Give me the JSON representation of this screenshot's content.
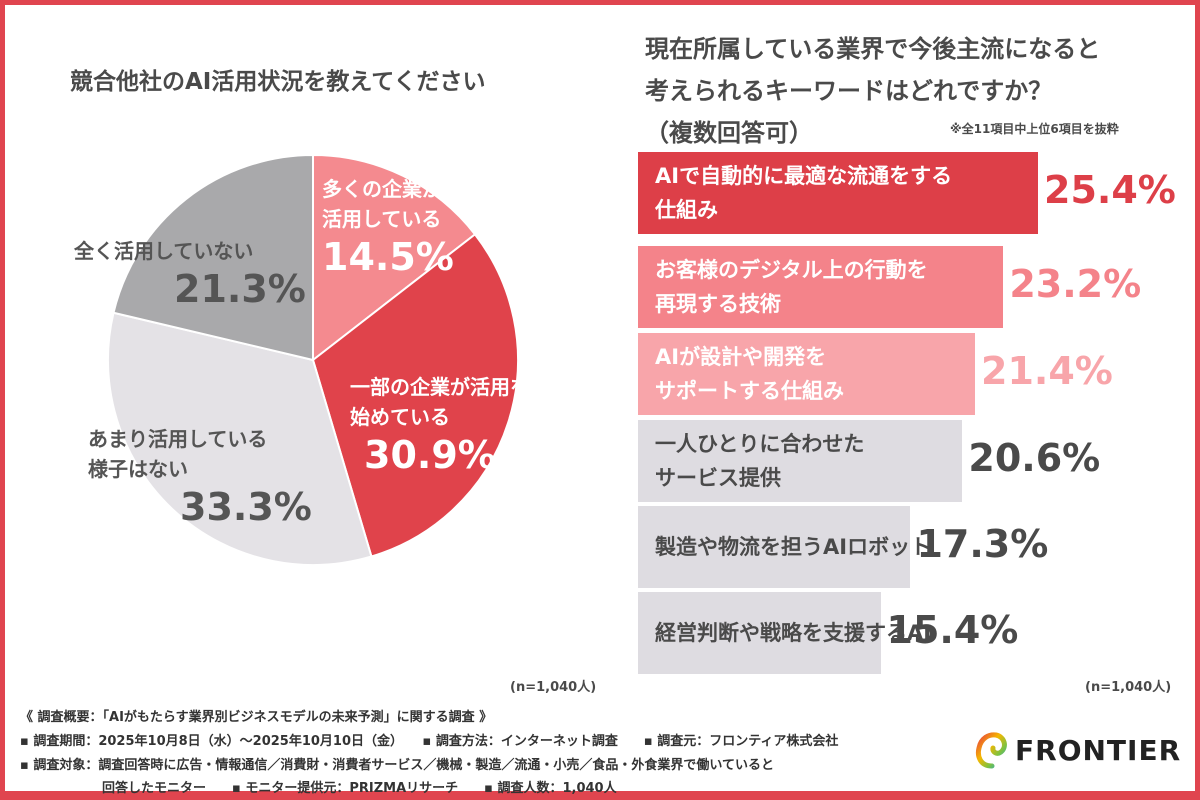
{
  "chart_data": [
    {
      "type": "pie",
      "title": "競合他社のAI活用状況を教えてください",
      "sample": "(n=1,040人)",
      "slices": [
        {
          "label": "多くの企業が積極的に活用している",
          "value": 14.5,
          "display": "14.5%",
          "color": "#f48a8f",
          "text_color": "#ffffff"
        },
        {
          "label": "一部の企業が活用を始めている",
          "value": 30.9,
          "display": "30.9%",
          "color": "#e0434b",
          "text_color": "#ffffff"
        },
        {
          "label": "あまり活用している様子はない",
          "value": 33.3,
          "display": "33.3%",
          "color": "#e4e2e6",
          "text_color": "#555555"
        },
        {
          "label": "全く活用していない",
          "value": 21.3,
          "display": "21.3%",
          "color": "#a9a9ab",
          "text_color": "#555555"
        }
      ]
    },
    {
      "type": "bar",
      "orientation": "horizontal",
      "title": "現在所属している業界で今後主流になると考えられるキーワードはどれですか？（複数回答可）",
      "note": "※全11項目中上位6項目を抜粋",
      "sample": "(n=1,040人)",
      "categories": [
        "AIで自動的に最適な流通をする仕組み",
        "お客様のデジタル上の行動を再現する技術",
        "AIが設計や開発をサポートする仕組み",
        "一人ひとりに合わせたサービス提供",
        "製造や物流を担うAIロボット",
        "経営判断や戦略を支援するAI"
      ],
      "values": [
        25.4,
        23.2,
        21.4,
        20.6,
        17.3,
        15.4
      ],
      "display": [
        "25.4%",
        "23.2%",
        "21.4%",
        "20.6%",
        "17.3%",
        "15.4%"
      ],
      "colors": [
        "#dd3f48",
        "#f4838a",
        "#f8a5aa",
        "#dedce1",
        "#dedce1",
        "#dedce1"
      ],
      "value_colors": [
        "#dd3f48",
        "#f4838a",
        "#f8a5aa",
        "#4a4a4a",
        "#4a4a4a",
        "#4a4a4a"
      ],
      "label_colors": [
        "#ffffff",
        "#ffffff",
        "#ffffff",
        "#4a4a4a",
        "#4a4a4a",
        "#4a4a4a"
      ]
    }
  ],
  "labels": {
    "pie": [
      [
        "多くの企業が積極的に",
        "活用している"
      ],
      [
        "一部の企業が活用を",
        "始めている"
      ],
      [
        "あまり活用している",
        "様子はない"
      ],
      [
        "全く活用していない"
      ]
    ],
    "bars": [
      [
        "AIで自動的に最適な流通をする",
        "仕組み"
      ],
      [
        "お客様のデジタル上の行動を",
        "再現する技術"
      ],
      [
        "AIが設計や開発を",
        "サポートする仕組み"
      ],
      [
        "一人ひとりに合わせた",
        "サービス提供"
      ],
      [
        "製造や物流を担うAIロボット"
      ],
      [
        "経営判断や戦略を支援するAI"
      ]
    ],
    "right_title": [
      "現在所属している業界で今後主流になると",
      "考えられるキーワードはどれですか？",
      "（複数回答可）"
    ]
  },
  "footer": {
    "lines": [
      "《 調査概要：「AIがもたらす業界別ビジネスモデルの未来予測」に関する調査 》",
      "▪ 調査期間：2025年10月8日（水）～2025年10月10日（金）　　▪ 調査方法：インターネット調査　　▪ 調査元：フロンティア株式会社",
      "▪ 調査対象：調査回答時に広告・情報通信／消費財・消費者サービス／機械・製造／流通・小売／食品・外食業界で働いていると",
      "回答したモニター　　▪ モニター提供元：PRIZMAリサーチ　　▪ 調査人数：1,040人"
    ],
    "logo": "FRONTIER"
  }
}
